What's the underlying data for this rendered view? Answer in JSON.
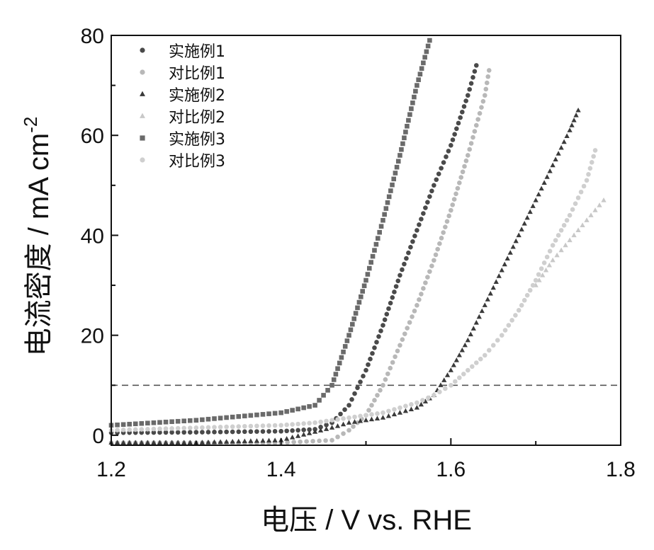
{
  "chart_data": {
    "type": "scatter",
    "xlabel": "电压 / V vs. RHE",
    "ylabel_main": "电流密度 / mA cm",
    "ylabel_sup": "-2",
    "xlim": [
      1.2,
      1.8
    ],
    "ylim": [
      -2,
      80
    ],
    "xticks": [
      "1.2",
      "1.4",
      "1.6",
      "1.8"
    ],
    "yticks": [
      "0",
      "20",
      "40",
      "60",
      "80"
    ],
    "grid": false,
    "legend_position": "top-left",
    "reference_line": {
      "y": 10,
      "style": "dashed",
      "color": "#555555"
    },
    "series": [
      {
        "name": "实施例1",
        "marker": "circle",
        "color": "#4a4a4a",
        "x": [
          1.2,
          1.3,
          1.4,
          1.44,
          1.46,
          1.48,
          1.5,
          1.52,
          1.54,
          1.56,
          1.58,
          1.6,
          1.62,
          1.63
        ],
        "y": [
          0.5,
          0.6,
          0.8,
          1.2,
          2.5,
          6.0,
          13.0,
          22.0,
          32.0,
          41.0,
          50.0,
          58.0,
          68.0,
          74.0
        ]
      },
      {
        "name": "对比例1",
        "marker": "circle",
        "color": "#b8b8b8",
        "x": [
          1.2,
          1.3,
          1.4,
          1.46,
          1.48,
          1.5,
          1.52,
          1.54,
          1.56,
          1.58,
          1.6,
          1.62,
          1.64,
          1.645
        ],
        "y": [
          -1.5,
          -1.5,
          -1.5,
          -1.0,
          1.0,
          4.0,
          10.0,
          18.0,
          26.0,
          35.0,
          45.0,
          56.0,
          68.0,
          73.0
        ]
      },
      {
        "name": "实施例2",
        "marker": "triangle",
        "color": "#3a3a3a",
        "x": [
          1.2,
          1.3,
          1.4,
          1.46,
          1.48,
          1.52,
          1.56,
          1.58,
          1.6,
          1.62,
          1.64,
          1.66,
          1.68,
          1.7,
          1.72,
          1.74,
          1.75
        ],
        "y": [
          -1.5,
          -1.5,
          -1.0,
          1.5,
          2.5,
          3.5,
          5.5,
          8.0,
          13.0,
          19.0,
          26.0,
          33.0,
          40.0,
          47.0,
          54.0,
          61.0,
          65.0
        ]
      },
      {
        "name": "对比例2",
        "marker": "triangle",
        "color": "#c8c8c8",
        "x": [
          1.7,
          1.72,
          1.74,
          1.76,
          1.78
        ],
        "y": [
          30.0,
          35.0,
          39.0,
          43.0,
          47.0
        ]
      },
      {
        "name": "实施例3",
        "marker": "square",
        "color": "#6a6a6a",
        "x": [
          1.2,
          1.3,
          1.4,
          1.44,
          1.46,
          1.48,
          1.5,
          1.52,
          1.54,
          1.56,
          1.575
        ],
        "y": [
          2.0,
          3.0,
          4.5,
          6.0,
          10.0,
          20.0,
          31.0,
          43.0,
          56.0,
          70.0,
          79.0
        ]
      },
      {
        "name": "对比例3",
        "marker": "circle",
        "color": "#cfcfcf",
        "x": [
          1.2,
          1.3,
          1.4,
          1.44,
          1.46,
          1.48,
          1.5,
          1.52,
          1.54,
          1.56,
          1.58,
          1.6,
          1.62,
          1.64,
          1.66,
          1.68,
          1.7,
          1.72,
          1.74,
          1.76,
          1.77
        ],
        "y": [
          1.0,
          1.5,
          2.0,
          2.5,
          3.0,
          3.5,
          4.0,
          4.5,
          5.5,
          6.5,
          8.0,
          10.0,
          13.0,
          16.0,
          20.0,
          25.0,
          31.0,
          38.0,
          44.0,
          51.0,
          57.0
        ]
      }
    ]
  }
}
